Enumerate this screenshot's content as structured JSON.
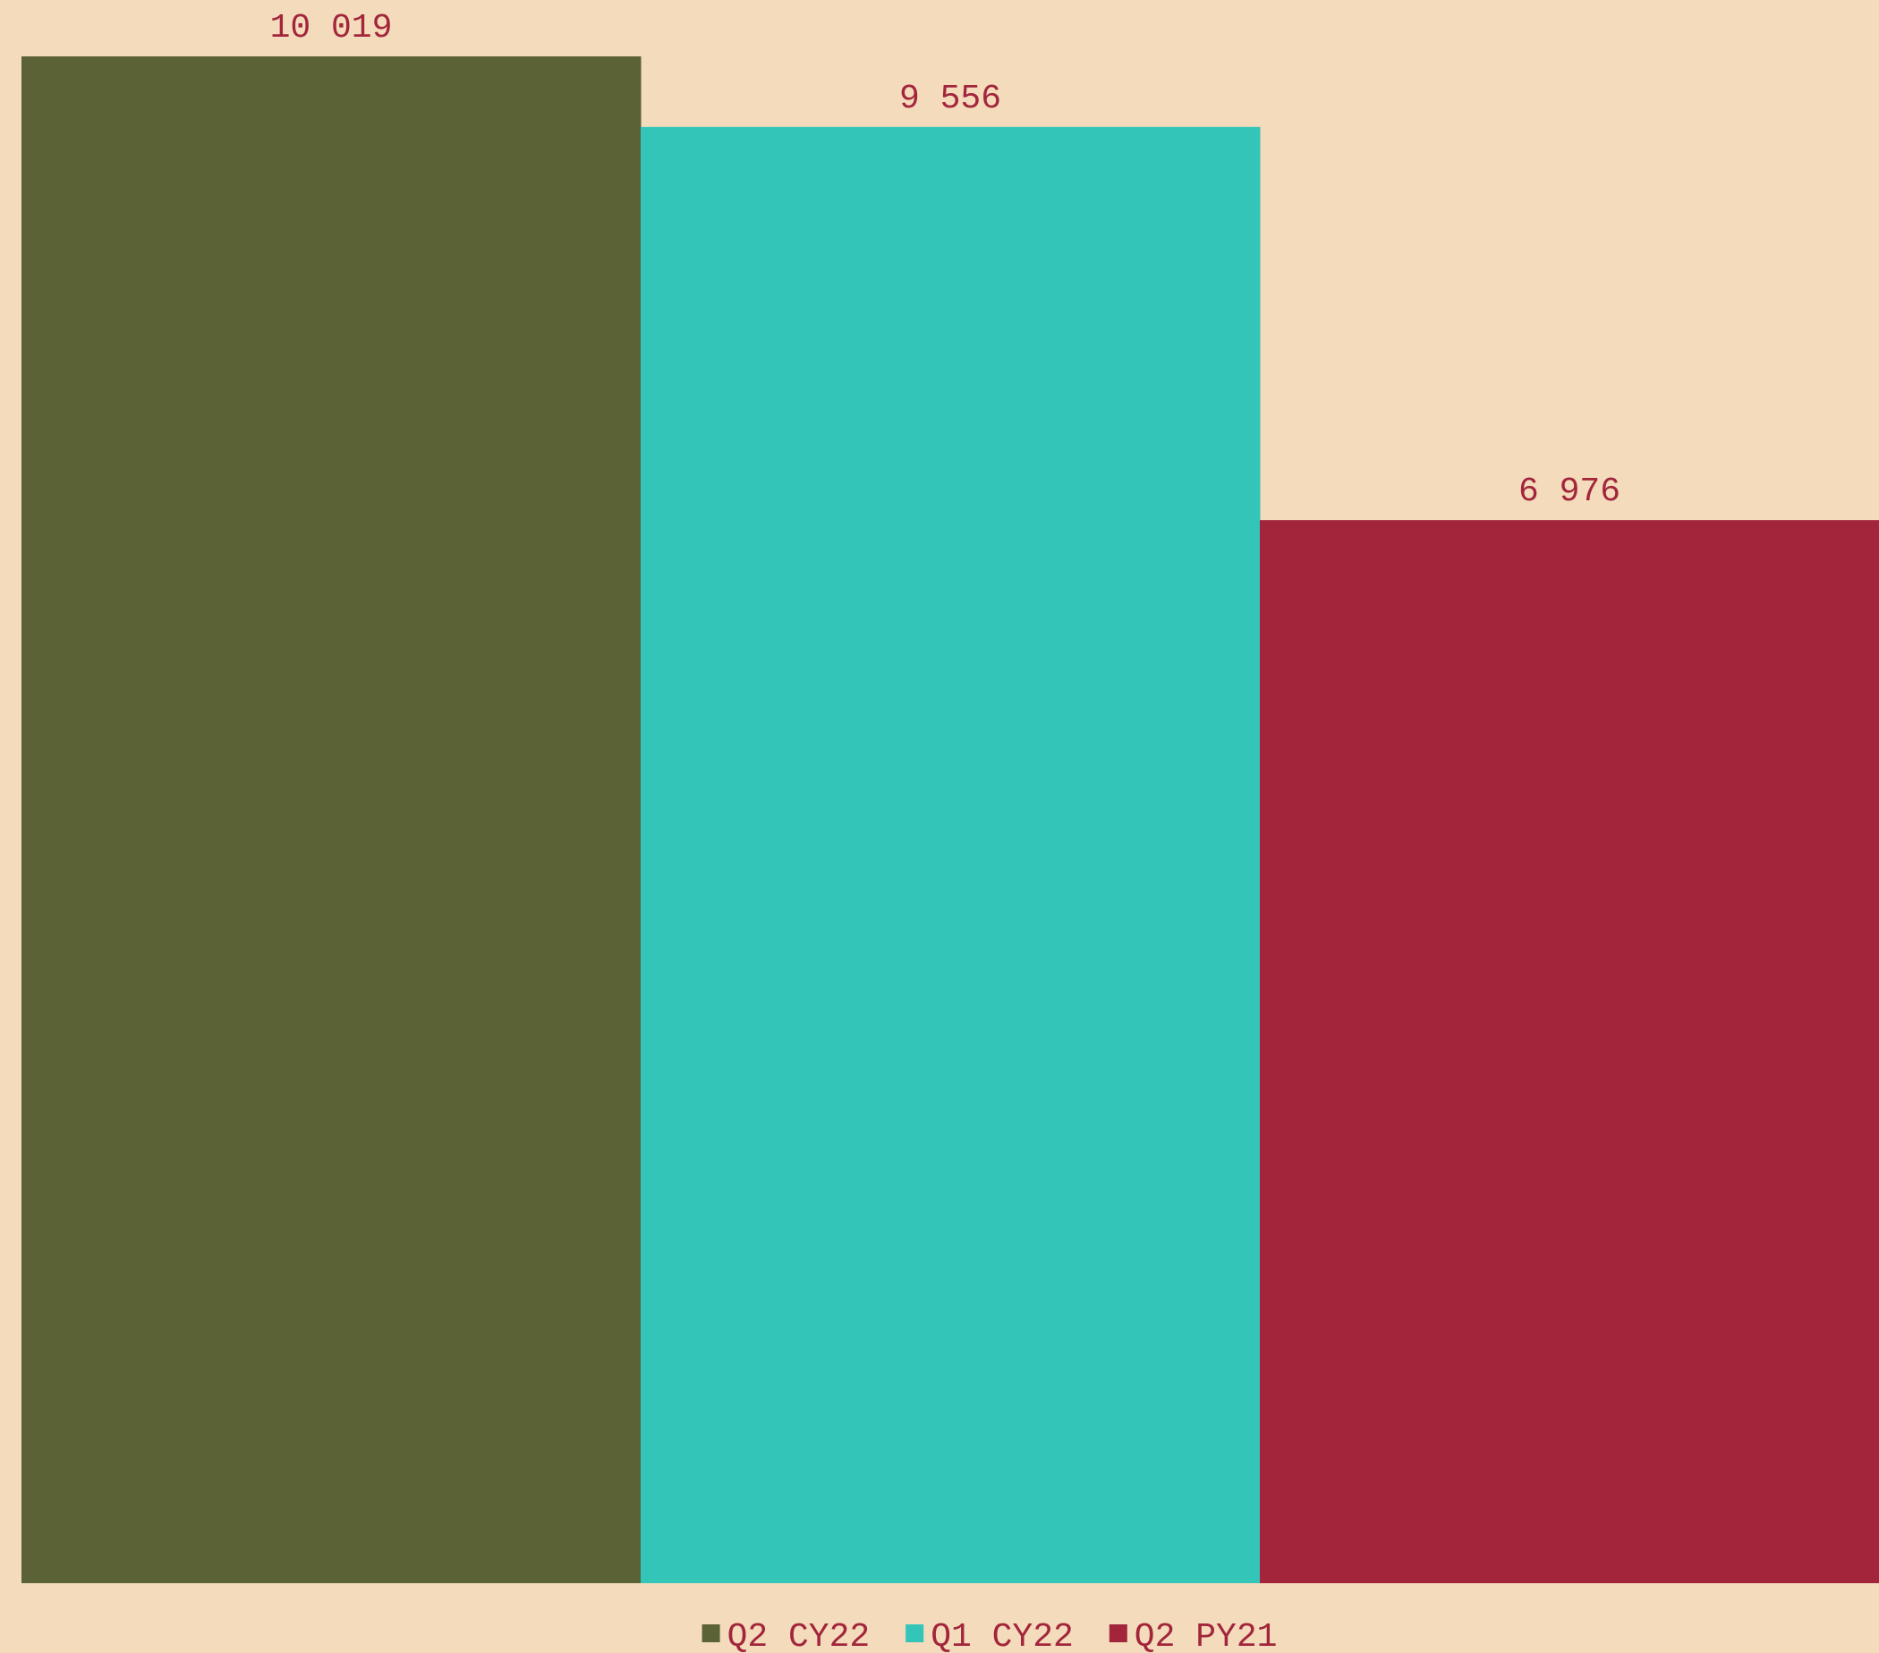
{
  "colors": {
    "background": "#f3dbbb",
    "text": "#a2253c"
  },
  "chart_data": {
    "type": "bar",
    "title": "",
    "xlabel": "",
    "ylabel": "",
    "ylim": [
      0,
      10019
    ],
    "grid": false,
    "legend_position": "bottom-center",
    "series": [
      {
        "name": "Q2 CY22",
        "value": 10019,
        "value_label": "10 019",
        "color": "#5b6235"
      },
      {
        "name": "Q1 CY22",
        "value": 9556,
        "value_label": "9 556",
        "color": "#34c5b9"
      },
      {
        "name": "Q2 PY21",
        "value": 6976,
        "value_label": "6 976",
        "color": "#a2253c"
      }
    ]
  }
}
